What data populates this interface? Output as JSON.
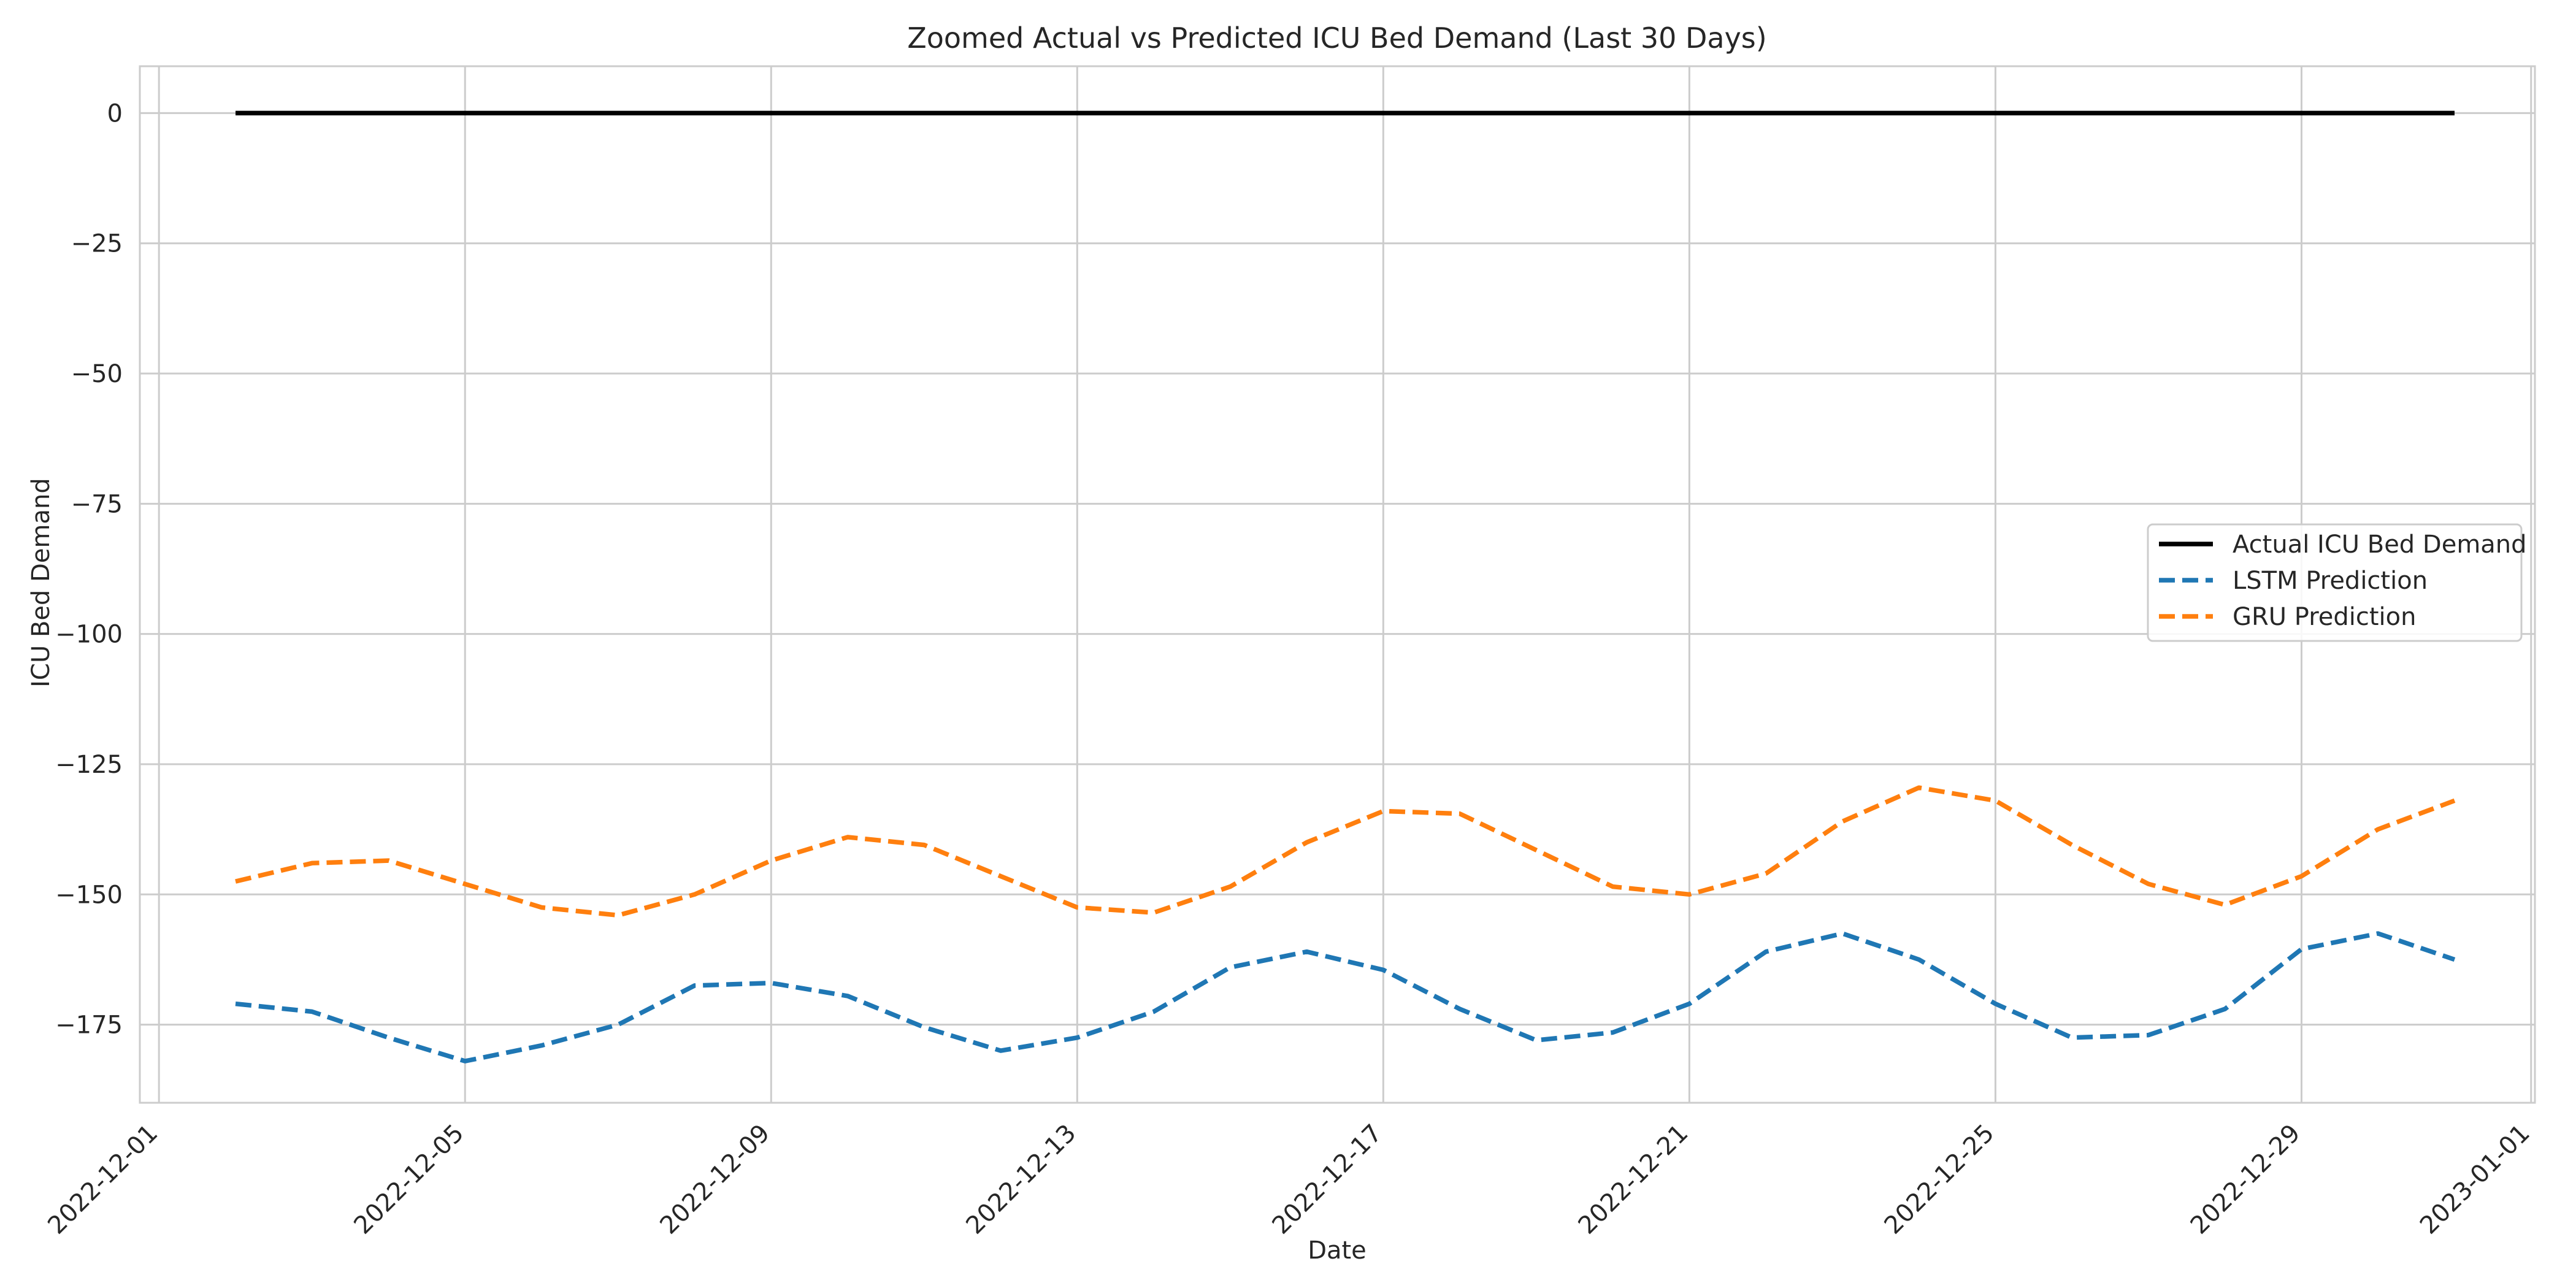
{
  "chart_data": {
    "type": "line",
    "title": "Zoomed Actual vs Predicted ICU Bed Demand (Last 30 Days)",
    "xlabel": "Date",
    "ylabel": "ICU Bed Demand",
    "xlim": [
      "2022-11-30",
      "2023-01-01"
    ],
    "ylim": [
      -190,
      9
    ],
    "grid": true,
    "legend_position": "center-right",
    "x_ticks": [
      "2022-12-01",
      "2022-12-05",
      "2022-12-09",
      "2022-12-13",
      "2022-12-17",
      "2022-12-21",
      "2022-12-25",
      "2022-12-29",
      "2023-01-01"
    ],
    "y_ticks": [
      0,
      -25,
      -50,
      -75,
      -100,
      -125,
      -150,
      -175
    ],
    "y_tick_labels": [
      "0",
      "−25",
      "−50",
      "−75",
      "−100",
      "−125",
      "−150",
      "−175"
    ],
    "x": [
      "2022-12-02",
      "2022-12-03",
      "2022-12-04",
      "2022-12-05",
      "2022-12-06",
      "2022-12-07",
      "2022-12-08",
      "2022-12-09",
      "2022-12-10",
      "2022-12-11",
      "2022-12-12",
      "2022-12-13",
      "2022-12-14",
      "2022-12-15",
      "2022-12-16",
      "2022-12-17",
      "2022-12-18",
      "2022-12-19",
      "2022-12-20",
      "2022-12-21",
      "2022-12-22",
      "2022-12-23",
      "2022-12-24",
      "2022-12-25",
      "2022-12-26",
      "2022-12-27",
      "2022-12-28",
      "2022-12-29",
      "2022-12-30",
      "2022-12-31"
    ],
    "series": [
      {
        "name": "Actual ICU Bed Demand",
        "color": "#000000",
        "style": "solid",
        "values": [
          0,
          0,
          0,
          0,
          0,
          0,
          0,
          0,
          0,
          0,
          0,
          0,
          0,
          0,
          0,
          0,
          0,
          0,
          0,
          0,
          0,
          0,
          0,
          0,
          0,
          0,
          0,
          0,
          0,
          0
        ]
      },
      {
        "name": "LSTM Prediction",
        "color": "#1f77b4",
        "style": "dashed",
        "values": [
          -171,
          -172.5,
          -177.5,
          -182,
          -179,
          -175,
          -167.5,
          -167,
          -169.5,
          -175.5,
          -180,
          -177.5,
          -172.5,
          -164,
          -161,
          -164.5,
          -172,
          -178,
          -176.5,
          -171,
          -161,
          -157.5,
          -162.5,
          -171,
          -177.5,
          -177,
          -172,
          -160.5,
          -157.5,
          -162.5
        ]
      },
      {
        "name": "GRU Prediction",
        "color": "#ff7f0e",
        "style": "dashed",
        "values": [
          -147.5,
          -144,
          -143.5,
          -148,
          -152.5,
          -154,
          -150,
          -143.5,
          -139,
          -140.5,
          -146.5,
          -152.5,
          -153.5,
          -148.5,
          -140,
          -134,
          -134.5,
          -141.5,
          -148.5,
          -150,
          -146,
          -136,
          -129.5,
          -132,
          -140.5,
          -148,
          -152,
          -146.5,
          -137.5,
          -132
        ]
      }
    ]
  }
}
